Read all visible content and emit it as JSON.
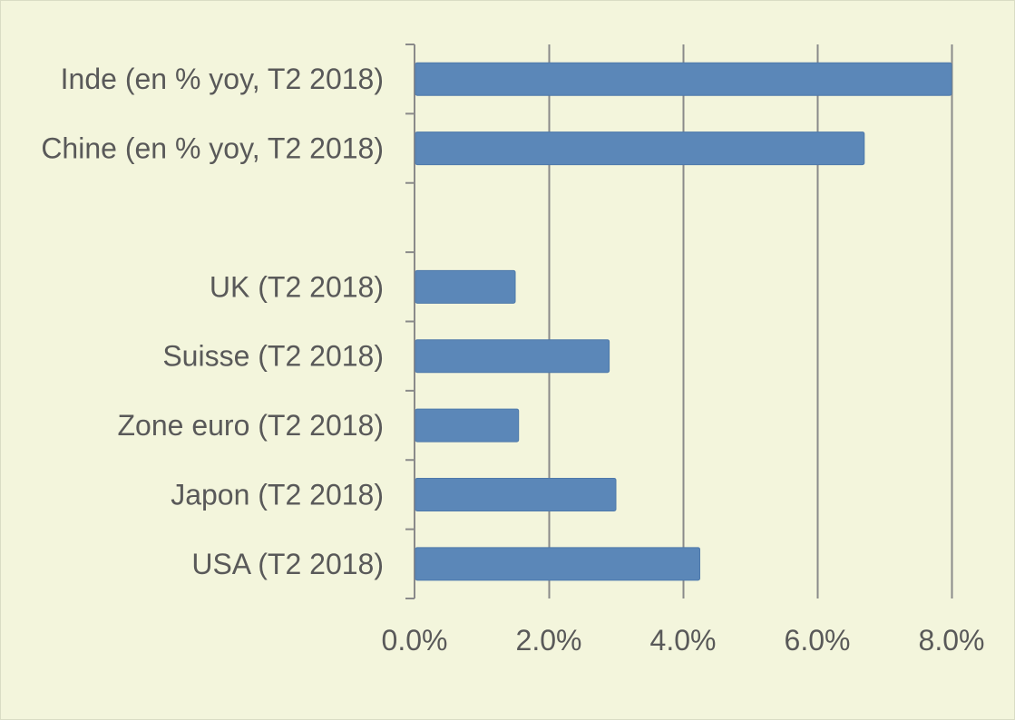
{
  "colors": {
    "background": "#f3f5dc",
    "border": "#d9dcc4",
    "bar": "#5b87b8",
    "bar_edge": "#4e79aa",
    "grid": "#8a8a8a",
    "axis": "#8a8a8a",
    "text": "#595959"
  },
  "chart_data": {
    "type": "bar",
    "orientation": "horizontal",
    "title": "",
    "xlabel": "",
    "ylabel": "",
    "xlim": [
      0,
      8
    ],
    "x_ticks": [
      "0.0%",
      "2.0%",
      "4.0%",
      "6.0%",
      "8.0%"
    ],
    "grid": true,
    "legend": "none",
    "categories": [
      "Inde (en % yoy, T2 2018)",
      "Chine (en % yoy, T2 2018)",
      "",
      "UK (T2 2018)",
      "Suisse (T2 2018)",
      "Zone euro (T2 2018)",
      "Japon (T2 2018)",
      "USA (T2 2018)"
    ],
    "values": [
      8.0,
      6.7,
      null,
      1.5,
      2.9,
      1.55,
      3.0,
      4.25
    ],
    "unit": "%"
  }
}
